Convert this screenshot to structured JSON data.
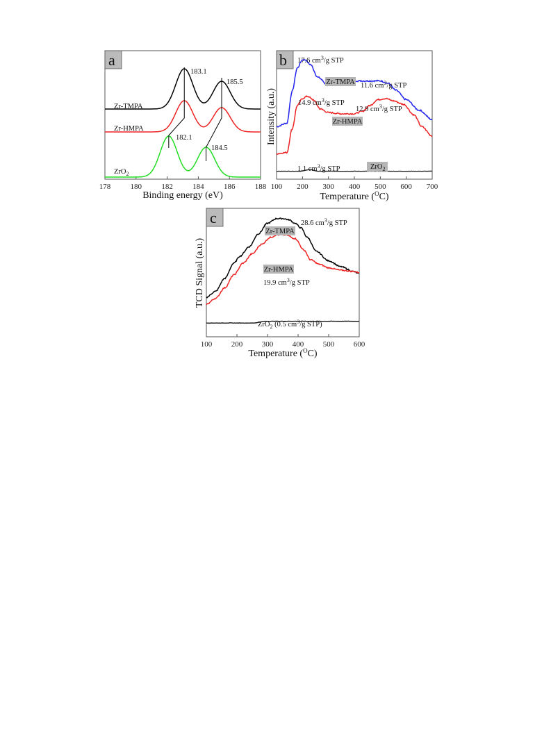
{
  "chart_data": [
    {
      "panel": "a",
      "type": "line",
      "xlabel": "Binding energy (eV)",
      "ylabel": "",
      "xlim": [
        178,
        188
      ],
      "xticks": [
        "178",
        "180",
        "182",
        "184",
        "186",
        "188"
      ],
      "series": [
        {
          "name": "Zr-TMPA",
          "color": "#000000",
          "peaks": [
            183.1,
            185.5
          ]
        },
        {
          "name": "Zr-HMPA",
          "color": "#ee2222",
          "peaks": [
            183.1,
            185.5
          ]
        },
        {
          "name": "ZrO",
          "name_sub": "2",
          "color": "#22dd22",
          "peaks": [
            182.1,
            184.5
          ]
        }
      ],
      "peak_labels": [
        "183.1",
        "185.5",
        "182.1",
        "184.5"
      ]
    },
    {
      "panel": "b",
      "type": "line",
      "xlabel_main": "Temperature (",
      "xlabel_sup": "O",
      "xlabel_tail": "C)",
      "ylabel": "Intensity (a.u.)",
      "xlim": [
        100,
        700
      ],
      "xticks": [
        "100",
        "200",
        "300",
        "400",
        "500",
        "600",
        "700"
      ],
      "series": [
        {
          "name": "Zr-TMPA",
          "color": "#2222ee",
          "x": [
            100,
            140,
            160,
            180,
            200,
            210,
            230,
            260,
            300,
            330,
            360,
            400,
            450,
            500,
            530,
            560,
            600,
            650,
            700
          ],
          "y": [
            0.4,
            0.43,
            0.7,
            0.9,
            0.97,
            0.97,
            0.93,
            0.82,
            0.75,
            0.76,
            0.78,
            0.79,
            0.79,
            0.79,
            0.77,
            0.71,
            0.63,
            0.54,
            0.46
          ]
        },
        {
          "name": "Zr-HMPA",
          "color": "#ee2222",
          "x": [
            100,
            140,
            160,
            180,
            200,
            220,
            240,
            270,
            300,
            350,
            400,
            430,
            460,
            490,
            520,
            550,
            590,
            630,
            660,
            700
          ],
          "y": [
            0.17,
            0.18,
            0.38,
            0.58,
            0.64,
            0.66,
            0.63,
            0.55,
            0.52,
            0.51,
            0.51,
            0.53,
            0.58,
            0.63,
            0.64,
            0.62,
            0.59,
            0.5,
            0.4,
            0.32
          ]
        },
        {
          "name": "ZrO",
          "name_sub": "2",
          "color": "#333333",
          "x": [
            100,
            190,
            230,
            260,
            700
          ],
          "y": [
            0.02,
            0.02,
            0.035,
            0.02,
            0.02
          ]
        }
      ],
      "annotations": [
        {
          "value": "17.6",
          "unit_pre": " cm",
          "sup": "3",
          "unit_post": "/g STP"
        },
        {
          "value": "11.6",
          "unit_pre": " cm",
          "sup": "3",
          "unit_post": "/g STP"
        },
        {
          "value": "14.9",
          "unit_pre": " cm",
          "sup": "3",
          "unit_post": "/g STP"
        },
        {
          "value": "12.9",
          "unit_pre": " cm",
          "sup": "3",
          "unit_post": "/g STP"
        },
        {
          "value": "1.1",
          "unit_pre": " cm",
          "sup": "3",
          "unit_post": "/g STP"
        }
      ]
    },
    {
      "panel": "c",
      "type": "line",
      "xlabel_main": "Temperature (",
      "xlabel_sup": "O",
      "xlabel_tail": "C)",
      "ylabel": "TCD Signal (a.u.)",
      "xlim": [
        100,
        600
      ],
      "xticks": [
        "100",
        "200",
        "300",
        "400",
        "500",
        "600"
      ],
      "series": [
        {
          "name": "Zr-TMPA",
          "color": "#000000",
          "x": [
            100,
            130,
            160,
            190,
            210,
            240,
            270,
            300,
            330,
            350,
            370,
            390,
            410,
            430,
            460,
            500,
            540,
            580,
            600
          ],
          "y": [
            0.29,
            0.34,
            0.45,
            0.58,
            0.64,
            0.72,
            0.83,
            0.92,
            0.96,
            0.96,
            0.95,
            0.92,
            0.88,
            0.8,
            0.68,
            0.6,
            0.55,
            0.51,
            0.49
          ]
        },
        {
          "name": "Zr-HMPA",
          "color": "#ee2222",
          "x": [
            100,
            130,
            160,
            190,
            220,
            250,
            280,
            310,
            330,
            360,
            390,
            420,
            440,
            470,
            500,
            540,
            580,
            600
          ],
          "y": [
            0.23,
            0.28,
            0.37,
            0.48,
            0.58,
            0.66,
            0.74,
            0.8,
            0.82,
            0.82,
            0.79,
            0.69,
            0.61,
            0.57,
            0.54,
            0.52,
            0.51,
            0.5
          ]
        },
        {
          "name": "ZrO",
          "name_sub": "2",
          "color": "#222222",
          "x": [
            100,
            250,
            300,
            600
          ],
          "y": [
            0.07,
            0.07,
            0.085,
            0.085
          ]
        }
      ],
      "annotations": [
        {
          "value": "28.6",
          "unit_pre": " cm",
          "sup": "3",
          "unit_post": "/g STP"
        },
        {
          "value": "19.9",
          "unit_pre": " cm",
          "sup": "3",
          "unit_post": "/g STP"
        },
        {
          "pre": "ZrO",
          "sub": "2",
          "mid": " (0.5 cm",
          "sup": "3",
          "post": "/g STP)"
        }
      ]
    }
  ]
}
